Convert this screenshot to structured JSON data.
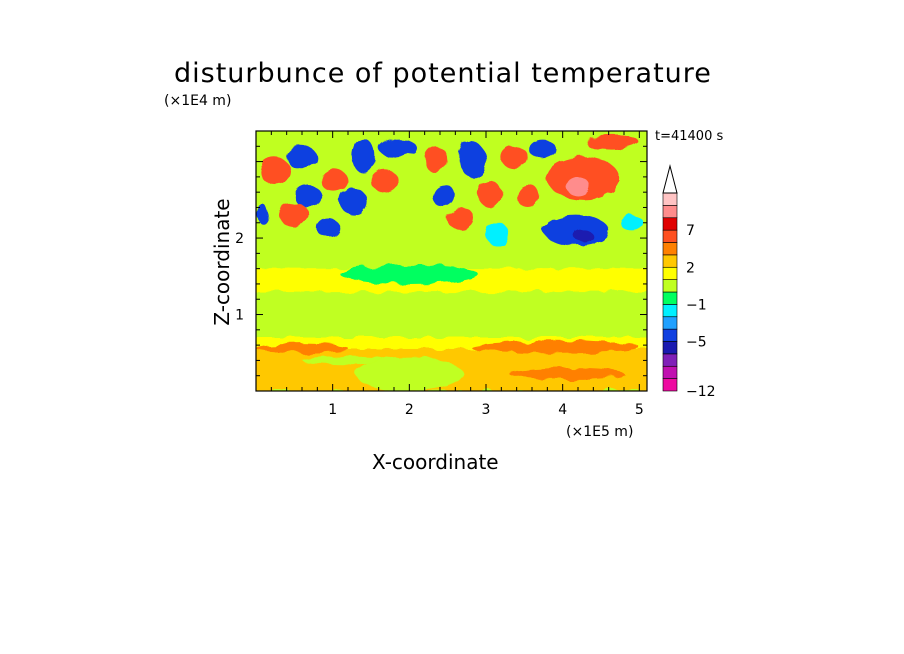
{
  "chart_data": {
    "type": "heatmap",
    "title": "disturbunce of potential temperature",
    "time_label": "t=41400 s",
    "xlabel": "X-coordinate",
    "ylabel": "Z-coordinate",
    "x_scale_label": "(×1E5 m)",
    "y_scale_label": "(×1E4 m)",
    "xlim": [
      0,
      5.1
    ],
    "ylim": [
      0,
      3.4
    ],
    "x_ticks": [
      1,
      2,
      3,
      4,
      5
    ],
    "y_ticks": [
      1,
      2
    ],
    "colorbar": {
      "labels": [
        "7",
        "2",
        "−1",
        "−5",
        "−12"
      ],
      "label_values": [
        7,
        2,
        -1,
        -5,
        -12
      ],
      "colors": [
        "#ee0aa0",
        "#c010b0",
        "#8020b8",
        "#1a1ab0",
        "#1040e0",
        "#20a0ff",
        "#00f0ff",
        "#00ff60",
        "#c0ff20",
        "#ffff00",
        "#ffc800",
        "#ff8000",
        "#ff5020",
        "#e00000",
        "#ff8c8c",
        "#ffc4c4"
      ],
      "extend": "max"
    },
    "features": [
      {
        "x": 0.0,
        "z": 0.0,
        "w": 5.1,
        "h": 0.55,
        "value": 2
      },
      {
        "x": 0.0,
        "z": 0.55,
        "w": 5.1,
        "h": 0.15,
        "value": 1
      },
      {
        "x": 0.0,
        "z": 0.7,
        "w": 5.1,
        "h": 0.6,
        "value": 0
      },
      {
        "x": 0.0,
        "z": 1.3,
        "w": 5.1,
        "h": 0.3,
        "value": 1
      },
      {
        "x": 0.6,
        "z": 0.35,
        "w": 1.1,
        "h": 0.12,
        "value": 0
      },
      {
        "x": 1.3,
        "z": 0.0,
        "w": 1.4,
        "h": 0.45,
        "value": 0
      },
      {
        "x": 3.3,
        "z": 0.15,
        "w": 1.5,
        "h": 0.15,
        "value": 3
      },
      {
        "x": 2.8,
        "z": 0.5,
        "w": 2.2,
        "h": 0.15,
        "value": 3
      },
      {
        "x": 0.0,
        "z": 0.5,
        "w": 1.2,
        "h": 0.12,
        "value": 3
      },
      {
        "x": 1.1,
        "z": 1.4,
        "w": 1.8,
        "h": 0.25,
        "value": -1
      },
      {
        "x": 0.05,
        "z": 2.7,
        "w": 0.4,
        "h": 0.35,
        "value": 5
      },
      {
        "x": 0.4,
        "z": 2.9,
        "w": 0.4,
        "h": 0.3,
        "value": -4
      },
      {
        "x": 0.5,
        "z": 2.4,
        "w": 0.35,
        "h": 0.3,
        "value": -4
      },
      {
        "x": 0.3,
        "z": 2.15,
        "w": 0.4,
        "h": 0.3,
        "value": 5
      },
      {
        "x": 0.8,
        "z": 2.0,
        "w": 0.3,
        "h": 0.25,
        "value": -4
      },
      {
        "x": 0.85,
        "z": 2.6,
        "w": 0.35,
        "h": 0.3,
        "value": 6
      },
      {
        "x": 1.1,
        "z": 2.3,
        "w": 0.35,
        "h": 0.35,
        "value": -4
      },
      {
        "x": 1.25,
        "z": 2.85,
        "w": 0.3,
        "h": 0.45,
        "value": -5
      },
      {
        "x": 1.5,
        "z": 2.6,
        "w": 0.35,
        "h": 0.3,
        "value": 5
      },
      {
        "x": 1.6,
        "z": 3.05,
        "w": 0.5,
        "h": 0.25,
        "value": -5
      },
      {
        "x": 2.2,
        "z": 2.85,
        "w": 0.3,
        "h": 0.35,
        "value": 5
      },
      {
        "x": 2.3,
        "z": 2.4,
        "w": 0.3,
        "h": 0.3,
        "value": -4
      },
      {
        "x": 2.5,
        "z": 2.1,
        "w": 0.35,
        "h": 0.3,
        "value": 5
      },
      {
        "x": 2.65,
        "z": 2.8,
        "w": 0.35,
        "h": 0.45,
        "value": -4
      },
      {
        "x": 2.9,
        "z": 2.4,
        "w": 0.3,
        "h": 0.35,
        "value": 5
      },
      {
        "x": 3.0,
        "z": 1.9,
        "w": 0.3,
        "h": 0.3,
        "value": -2
      },
      {
        "x": 3.2,
        "z": 2.9,
        "w": 0.35,
        "h": 0.3,
        "value": 6
      },
      {
        "x": 3.4,
        "z": 2.4,
        "w": 0.3,
        "h": 0.3,
        "value": 5
      },
      {
        "x": 3.55,
        "z": 3.05,
        "w": 0.35,
        "h": 0.25,
        "value": -4
      },
      {
        "x": 3.8,
        "z": 2.5,
        "w": 0.95,
        "h": 0.55,
        "value": 6
      },
      {
        "x": 4.05,
        "z": 2.55,
        "w": 0.3,
        "h": 0.25,
        "value": 9
      },
      {
        "x": 4.3,
        "z": 3.15,
        "w": 0.7,
        "h": 0.2,
        "value": 5
      },
      {
        "x": 3.75,
        "z": 1.9,
        "w": 0.85,
        "h": 0.4,
        "value": -4
      },
      {
        "x": 4.15,
        "z": 1.95,
        "w": 0.25,
        "h": 0.15,
        "value": -6
      },
      {
        "x": 4.75,
        "z": 2.1,
        "w": 0.3,
        "h": 0.2,
        "value": -2
      },
      {
        "x": 0.0,
        "z": 2.2,
        "w": 0.15,
        "h": 0.25,
        "value": -4
      }
    ]
  }
}
